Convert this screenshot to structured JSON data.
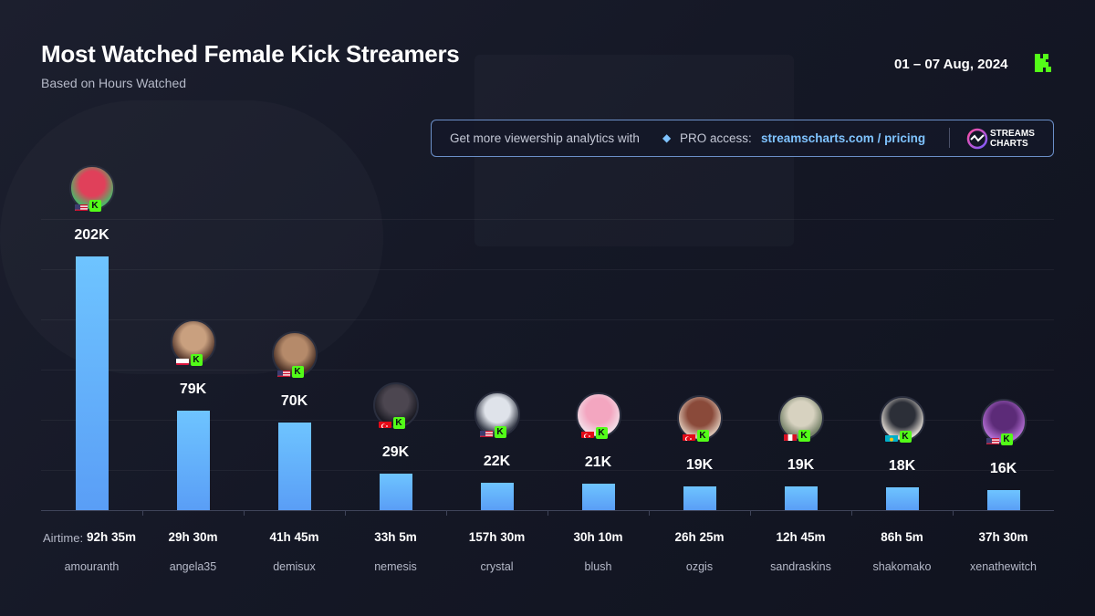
{
  "header": {
    "title": "Most Watched Female Kick Streamers",
    "subtitle": "Based on Hours Watched",
    "date_range": "01 – 07 Aug, 2024"
  },
  "promo": {
    "text": "Get more viewership analytics with",
    "pro": "PRO access:",
    "link": "streamscharts.com / pricing",
    "logo_line1": "STREAMS",
    "logo_line2": "CHARTS"
  },
  "colors": {
    "bar": "#6ec4ff",
    "kick_green": "#53fc18",
    "link": "#7fc3ff",
    "background": "#151826"
  },
  "chart_data": {
    "type": "bar",
    "title": "Most Watched Female Kick Streamers",
    "subtitle": "Based on Hours Watched",
    "ylabel": "",
    "grid": true,
    "ylim": [
      0,
      202000
    ],
    "categories": [
      "amouranth",
      "angela35",
      "demisux",
      "nemesis",
      "crystal",
      "blush",
      "ozgis",
      "sandraskins",
      "shakomako",
      "xenathewitch"
    ],
    "values": [
      202000,
      79000,
      70000,
      29000,
      22000,
      21000,
      19000,
      19000,
      18000,
      16000
    ],
    "value_labels": [
      "202K",
      "79K",
      "70K",
      "29K",
      "22K",
      "21K",
      "19K",
      "19K",
      "18K",
      "16K"
    ],
    "airtime_label": "Airtime:",
    "airtime": [
      "92h 35m",
      "29h 30m",
      "41h 45m",
      "33h 5m",
      "157h 30m",
      "30h 10m",
      "26h 25m",
      "12h 45m",
      "86h 5m",
      "37h 30m"
    ],
    "countries": [
      "us",
      "pl",
      "us",
      "tr",
      "us",
      "tr",
      "tr",
      "pe",
      "kz",
      "us"
    ],
    "platform_icon": "kick-badge-icon"
  }
}
